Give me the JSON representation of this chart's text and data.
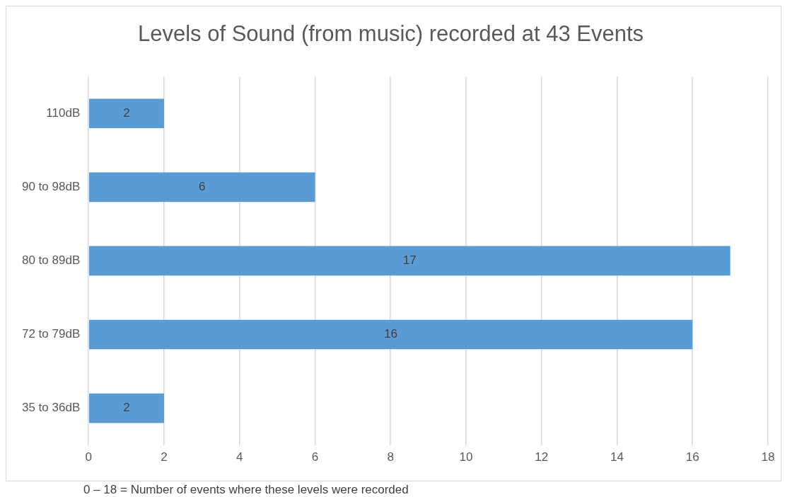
{
  "chart_data": {
    "type": "bar",
    "orientation": "horizontal",
    "title": "Levels of Sound (from music) recorded at 43 Events",
    "categories": [
      "110dB",
      "90 to 98dB",
      "80 to 89dB",
      "72 to 79dB",
      "35 to 36dB"
    ],
    "values": [
      2,
      6,
      17,
      16,
      2
    ],
    "color": "#5b9bd5",
    "xlim": [
      0,
      18
    ],
    "xticks": [
      0,
      2,
      4,
      6,
      8,
      10,
      12,
      14,
      16,
      18
    ],
    "grid": "x",
    "data_labels": true,
    "legend": false,
    "annotations": [
      "0 – 18 = Number of events where these levels were recorded"
    ]
  }
}
